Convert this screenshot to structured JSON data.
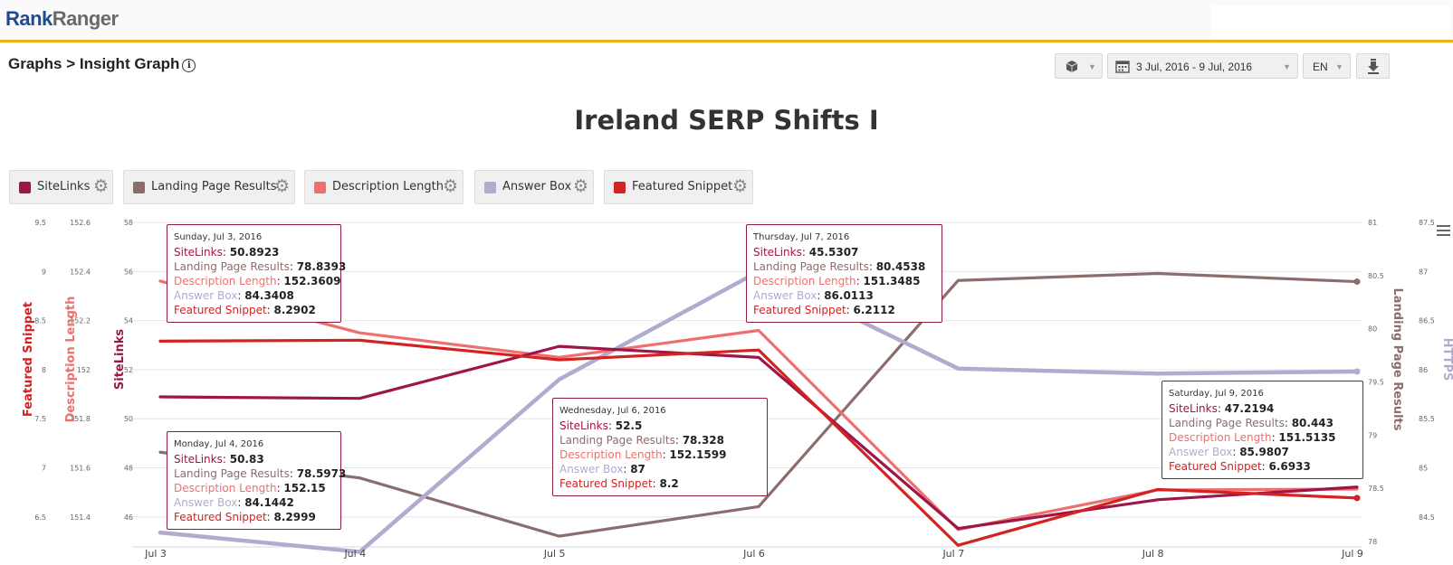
{
  "app": {
    "logo_part1": "Rank",
    "logo_part2": "Ranger"
  },
  "breadcrumb": "Graphs > Insight Graph",
  "toolbar": {
    "date_range": "3 Jul, 2016 - 9 Jul, 2016",
    "language": "EN"
  },
  "chart_data": {
    "type": "line",
    "title": "Ireland SERP Shifts I",
    "categories": [
      "Jul 3",
      "Jul 4",
      "Jul 5",
      "Jul 6",
      "Jul 7",
      "Jul 8",
      "Jul 9"
    ],
    "series": [
      {
        "name": "SiteLinks",
        "color": "#9e1547",
        "axis": "SiteLinks",
        "values": [
          50.8923,
          50.83,
          52.95,
          52.5,
          45.5307,
          46.7,
          47.2194
        ]
      },
      {
        "name": "Landing Page Results",
        "color": "#8c6d6d",
        "axis": "Landing Page Results",
        "values": [
          78.8393,
          78.5973,
          78.05,
          78.328,
          80.4538,
          80.52,
          80.443
        ]
      },
      {
        "name": "Description Length",
        "color": "#ef6f6f",
        "axis": "Description Length",
        "values": [
          152.3609,
          152.15,
          152.05,
          152.1599,
          151.3485,
          151.51,
          151.5135
        ]
      },
      {
        "name": "Answer Box",
        "color": "#b1abcf",
        "axis": "HTTPS",
        "values": [
          84.3408,
          84.1442,
          85.9,
          87,
          86.0113,
          85.96,
          85.9807
        ]
      },
      {
        "name": "Featured Snippet",
        "color": "#d42121",
        "axis": "Featured Snippet",
        "values": [
          8.2902,
          8.2999,
          8.1,
          8.2,
          6.2112,
          6.78,
          6.6933
        ]
      }
    ],
    "axes": [
      {
        "id": "Featured Snippet",
        "label": "Featured Snippet",
        "color": "#d42121",
        "side": "left",
        "min": 6.25,
        "max": 9.5,
        "ticks": [
          "9.5",
          "9",
          "8.5",
          "8",
          "7.5",
          "7",
          "6.5"
        ],
        "tick_values": [
          9.5,
          9,
          8.5,
          8,
          7.5,
          7,
          6.5
        ]
      },
      {
        "id": "Description Length",
        "label": "Description Length",
        "color": "#ef6f6f",
        "side": "left",
        "min": 151.3,
        "max": 152.6,
        "ticks": [
          "152.6",
          "152.4",
          "152.2",
          "152",
          "151.8",
          "151.6",
          "151.4"
        ],
        "tick_values": [
          152.6,
          152.4,
          152.2,
          152,
          151.8,
          151.6,
          151.4
        ]
      },
      {
        "id": "SiteLinks",
        "label": "SiteLinks",
        "color": "#9e1547",
        "side": "left",
        "min": 45,
        "max": 58,
        "ticks": [
          "58",
          "56",
          "54",
          "52",
          "50",
          "48",
          "46"
        ],
        "tick_values": [
          58,
          56,
          54,
          52,
          50,
          48,
          46
        ]
      },
      {
        "id": "Landing Page Results",
        "label": "Landing Page Results",
        "color": "#8c6d6d",
        "side": "right",
        "min": 78,
        "max": 81,
        "ticks": [
          "81",
          "80.5",
          "80",
          "79.5",
          "79",
          "78.5",
          "78"
        ],
        "tick_values": [
          81,
          80.5,
          80,
          79.5,
          79,
          78.5,
          78
        ]
      },
      {
        "id": "HTTPS",
        "label": "HTTPS",
        "color": "#b1abcf",
        "side": "right",
        "min": 84.25,
        "max": 87.5,
        "ticks": [
          "87.5",
          "87",
          "86.5",
          "86",
          "85.5",
          "85",
          "84.5"
        ],
        "tick_values": [
          87.5,
          87,
          86.5,
          86,
          85.5,
          85,
          84.5
        ]
      }
    ],
    "tooltips": [
      {
        "date": "Sunday, Jul 3, 2016",
        "rows": [
          [
            "SiteLinks",
            "50.8923"
          ],
          [
            "Landing Page Results",
            "78.8393"
          ],
          [
            "Description Length",
            "152.3609"
          ],
          [
            "Answer Box",
            "84.3408"
          ],
          [
            "Featured Snippet",
            "8.2902"
          ]
        ]
      },
      {
        "date": "Monday, Jul 4, 2016",
        "rows": [
          [
            "SiteLinks",
            "50.83"
          ],
          [
            "Landing Page Results",
            "78.5973"
          ],
          [
            "Description Length",
            "152.15"
          ],
          [
            "Answer Box",
            "84.1442"
          ],
          [
            "Featured Snippet",
            "8.2999"
          ]
        ]
      },
      {
        "date": "Wednesday, Jul 6, 2016",
        "rows": [
          [
            "SiteLinks",
            "52.5"
          ],
          [
            "Landing Page Results",
            "78.328"
          ],
          [
            "Description Length",
            "152.1599"
          ],
          [
            "Answer Box",
            "87"
          ],
          [
            "Featured Snippet",
            "8.2"
          ]
        ]
      },
      {
        "date": "Thursday, Jul 7, 2016",
        "rows": [
          [
            "SiteLinks",
            "45.5307"
          ],
          [
            "Landing Page Results",
            "80.4538"
          ],
          [
            "Description Length",
            "151.3485"
          ],
          [
            "Answer Box",
            "86.0113"
          ],
          [
            "Featured Snippet",
            "6.2112"
          ]
        ]
      },
      {
        "date": "Saturday, Jul 9, 2016",
        "rows": [
          [
            "SiteLinks",
            "47.2194"
          ],
          [
            "Landing Page Results",
            "80.443"
          ],
          [
            "Description Length",
            "151.5135"
          ],
          [
            "Answer Box",
            "85.9807"
          ],
          [
            "Featured Snippet",
            "6.6933"
          ]
        ]
      }
    ]
  }
}
